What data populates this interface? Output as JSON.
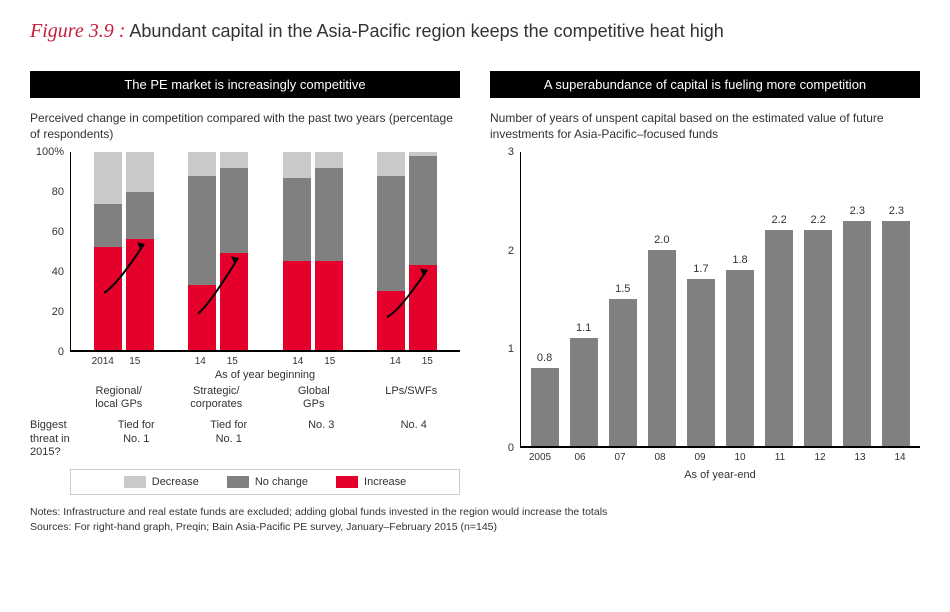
{
  "figure": {
    "number": "Figure 3.9 :",
    "caption": "Abundant capital in the Asia-Pacific region keeps the competitive heat high"
  },
  "left_panel": {
    "header": "The PE market is increasingly competitive",
    "subtitle": "Perceived change in competition compared with the past two years (percentage of respondents)",
    "chart": {
      "type": "stacked-bar",
      "ylim": [
        0,
        100
      ],
      "yticks": [
        0,
        20,
        40,
        60,
        80,
        100
      ],
      "ytick_labels": [
        "0",
        "20",
        "40",
        "60",
        "80",
        "100%"
      ],
      "colors": {
        "increase": "#e4002b",
        "no_change": "#808080",
        "decrease": "#c9c9c9"
      },
      "x_axis_title": "As of year beginning",
      "groups": [
        {
          "category": "Regional/\nlocal GPs",
          "years": [
            "2014",
            "15"
          ],
          "bars": [
            {
              "increase": 52,
              "no_change": 22,
              "decrease": 26
            },
            {
              "increase": 56,
              "no_change": 24,
              "decrease": 20
            }
          ],
          "show_arrow": true,
          "threat": "Tied for\nNo. 1"
        },
        {
          "category": "Strategic/\ncorporates",
          "years": [
            "14",
            "15"
          ],
          "bars": [
            {
              "increase": 33,
              "no_change": 55,
              "decrease": 12
            },
            {
              "increase": 49,
              "no_change": 43,
              "decrease": 8
            }
          ],
          "show_arrow": true,
          "threat": "Tied for\nNo. 1"
        },
        {
          "category": "Global\nGPs",
          "years": [
            "14",
            "15"
          ],
          "bars": [
            {
              "increase": 45,
              "no_change": 42,
              "decrease": 13
            },
            {
              "increase": 45,
              "no_change": 47,
              "decrease": 8
            }
          ],
          "show_arrow": false,
          "threat": "No. 3"
        },
        {
          "category": "LPs/SWFs",
          "years": [
            "14",
            "15"
          ],
          "bars": [
            {
              "increase": 30,
              "no_change": 58,
              "decrease": 12
            },
            {
              "increase": 43,
              "no_change": 55,
              "decrease": 2
            }
          ],
          "show_arrow": true,
          "threat": "No. 4"
        }
      ],
      "threat_label": "Biggest threat in 2015?"
    },
    "legend": [
      {
        "label": "Decrease",
        "color": "#c9c9c9"
      },
      {
        "label": "No change",
        "color": "#808080"
      },
      {
        "label": "Increase",
        "color": "#e4002b"
      }
    ]
  },
  "right_panel": {
    "header": "A superabundance of capital is fueling more competition",
    "subtitle": "Number of years of unspent capital based on the estimated value of future investments for Asia-Pacific–focused funds",
    "chart": {
      "type": "bar",
      "ylim": [
        0,
        3
      ],
      "yticks": [
        0,
        1,
        2,
        3
      ],
      "bar_color": "#808080",
      "x_axis_title": "As of year-end",
      "data": [
        {
          "x": "2005",
          "y": 0.8
        },
        {
          "x": "06",
          "y": 1.1
        },
        {
          "x": "07",
          "y": 1.5
        },
        {
          "x": "08",
          "y": 2.0
        },
        {
          "x": "09",
          "y": 1.7
        },
        {
          "x": "10",
          "y": 1.8
        },
        {
          "x": "11",
          "y": 2.2
        },
        {
          "x": "12",
          "y": 2.2
        },
        {
          "x": "13",
          "y": 2.3
        },
        {
          "x": "14",
          "y": 2.3
        }
      ]
    }
  },
  "footer": {
    "notes": "Notes: Infrastructure and real estate funds are excluded; adding global funds invested in the region would increase the totals",
    "sources": "Sources: For right-hand graph, Preqin; Bain Asia-Pacific PE survey, January–February 2015 (n=145)"
  }
}
